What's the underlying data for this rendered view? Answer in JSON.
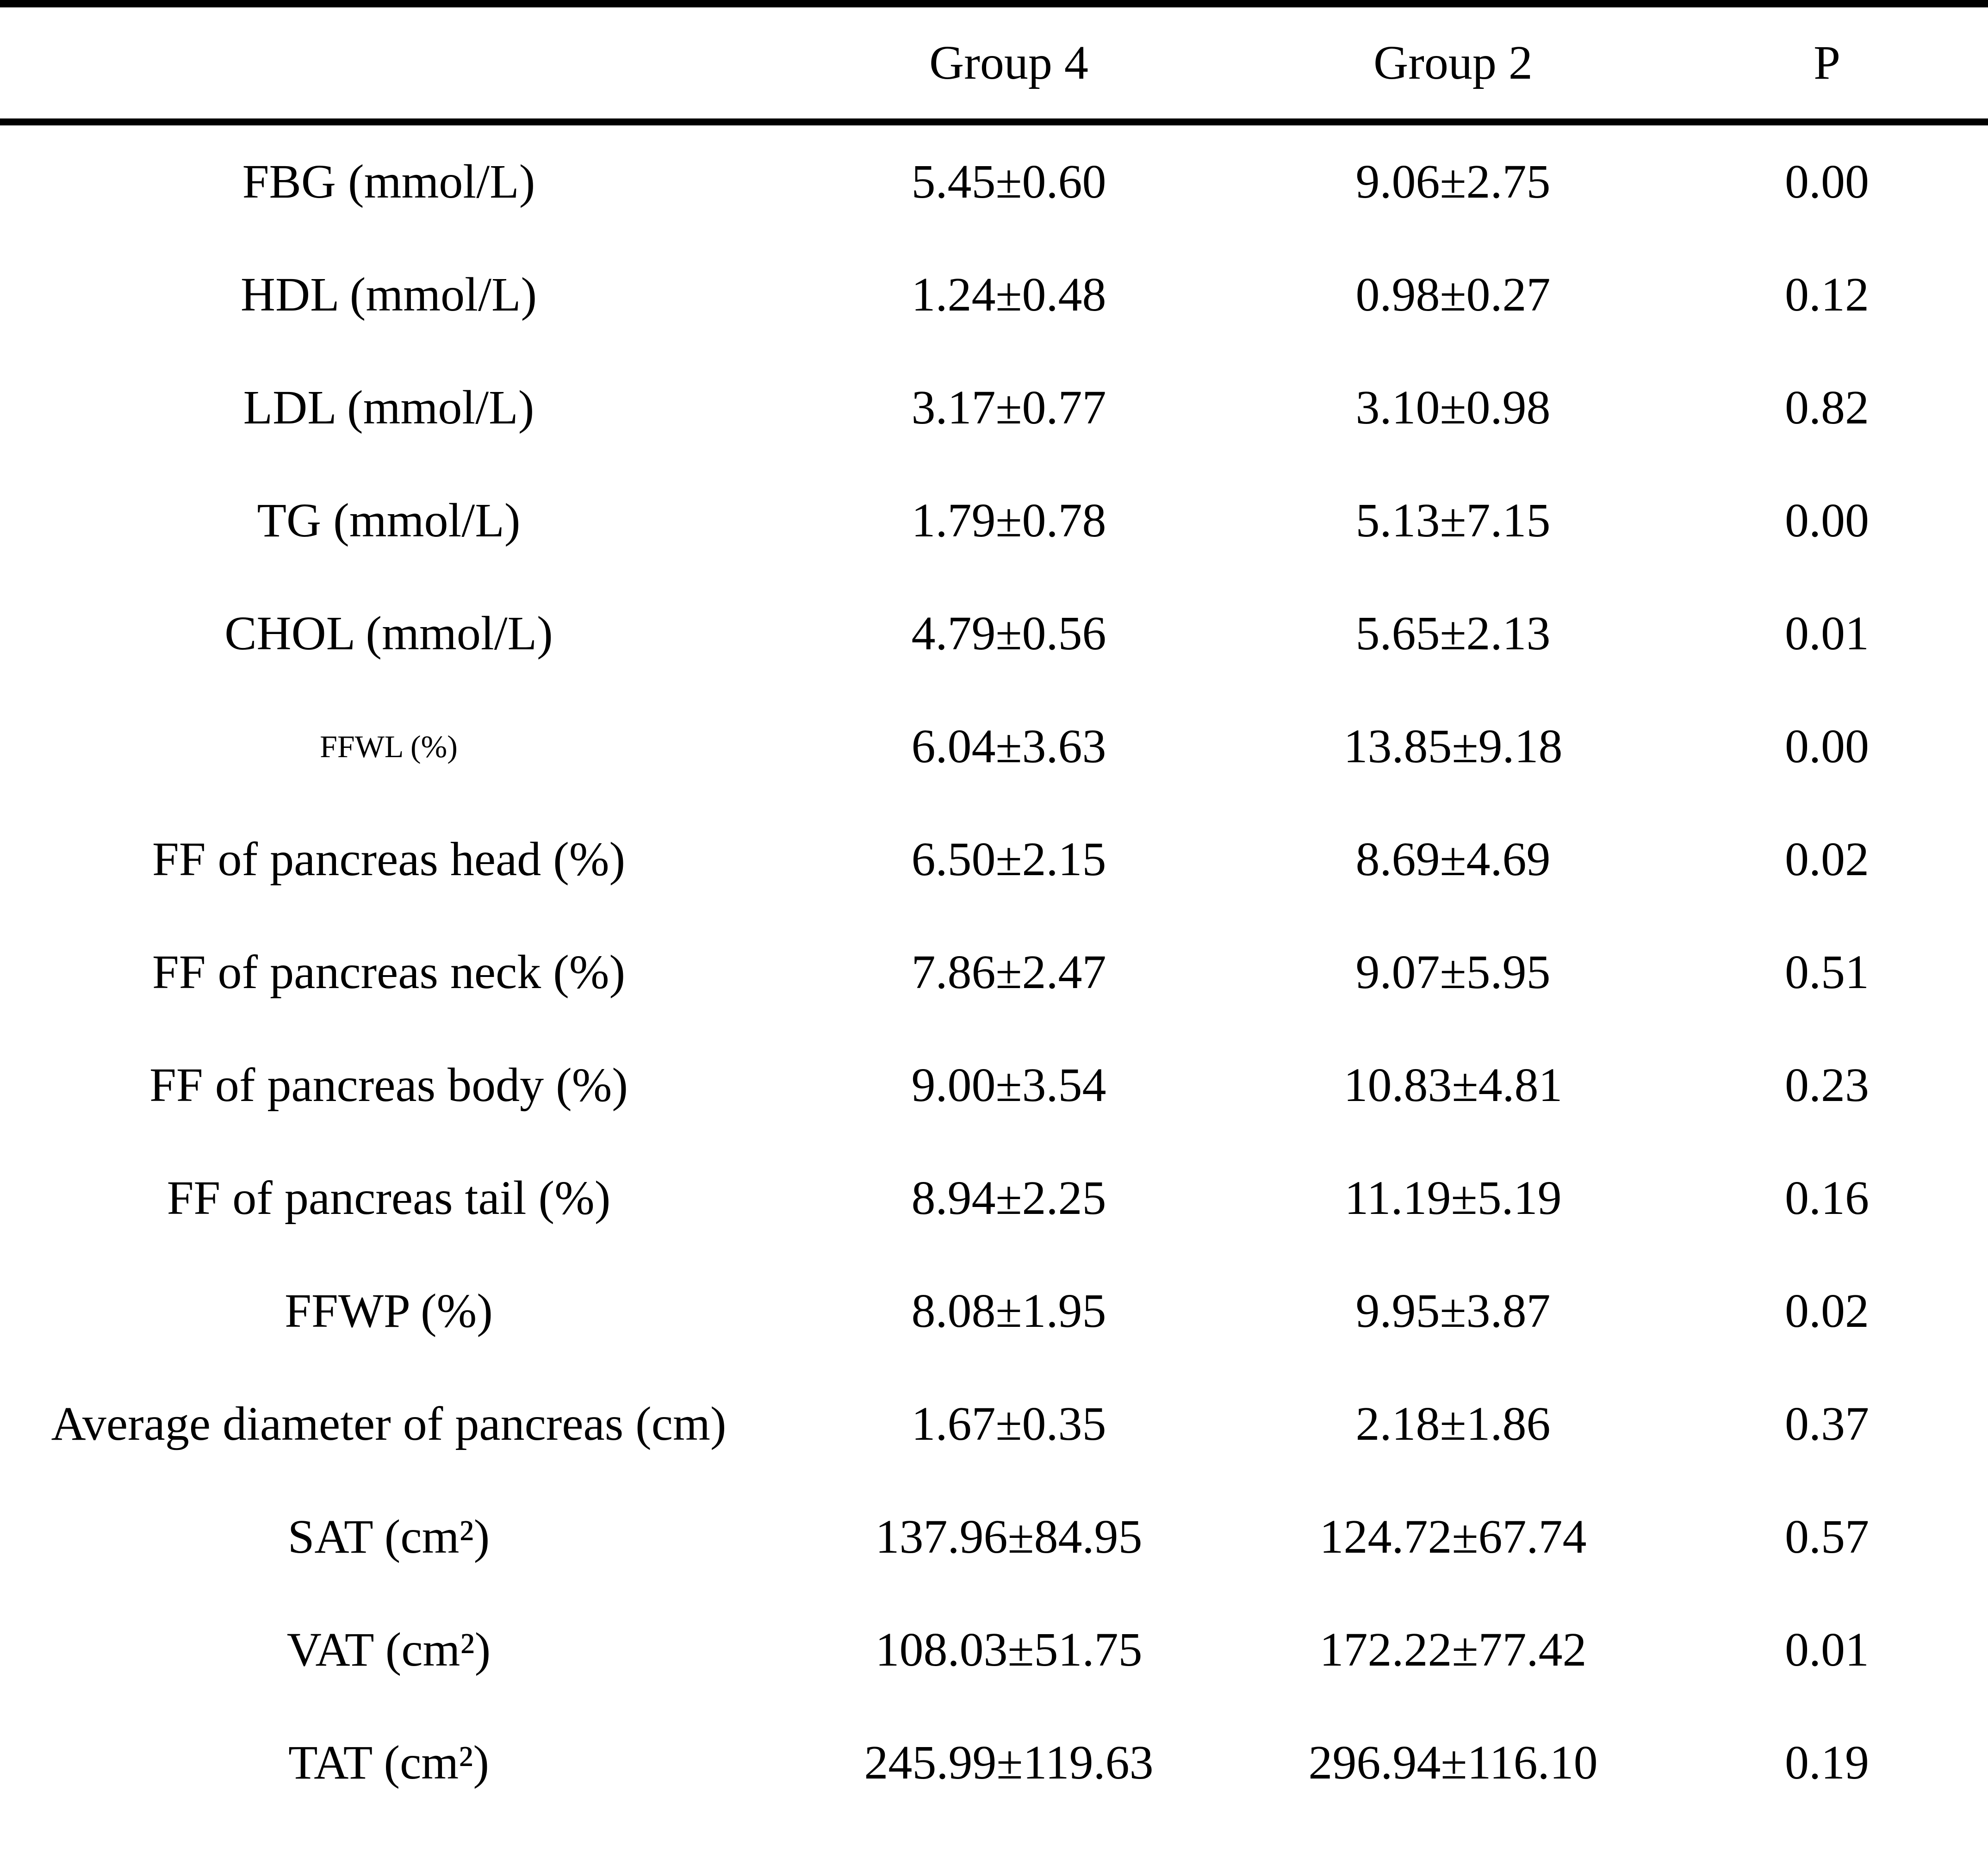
{
  "table": {
    "columns": [
      "",
      "Group 4",
      "Group 2",
      "P"
    ],
    "rows": [
      {
        "label": "FBG (mmol/L)",
        "group4": "5.45±0.60",
        "group2": "9.06±2.75",
        "p": "0.00"
      },
      {
        "label": "HDL (mmol/L)",
        "group4": "1.24±0.48",
        "group2": "0.98±0.27",
        "p": "0.12"
      },
      {
        "label": "LDL (mmol/L)",
        "group4": "3.17±0.77",
        "group2": "3.10±0.98",
        "p": "0.82"
      },
      {
        "label": "TG (mmol/L)",
        "group4": "1.79±0.78",
        "group2": "5.13±7.15",
        "p": "0.00"
      },
      {
        "label": "CHOL (mmol/L)",
        "group4": "4.79±0.56",
        "group2": "5.65±2.13",
        "p": "0.01"
      },
      {
        "label": "FFWL (%)",
        "group4": "6.04±3.63",
        "group2": "13.85±9.18",
        "p": "0.00"
      },
      {
        "label": "FF of pancreas head (%)",
        "group4": "6.50±2.15",
        "group2": "8.69±4.69",
        "p": "0.02"
      },
      {
        "label": "FF of pancreas neck (%)",
        "group4": "7.86±2.47",
        "group2": "9.07±5.95",
        "p": "0.51"
      },
      {
        "label": "FF of pancreas body (%)",
        "group4": "9.00±3.54",
        "group2": "10.83±4.81",
        "p": "0.23"
      },
      {
        "label": "FF of pancreas tail (%)",
        "group4": "8.94±2.25",
        "group2": "11.19±5.19",
        "p": "0.16"
      },
      {
        "label": "FFWP (%)",
        "group4": "8.08±1.95",
        "group2": "9.95±3.87",
        "p": "0.02"
      },
      {
        "label": "Average diameter of pancreas (cm)",
        "group4": "1.67±0.35",
        "group2": "2.18±1.86",
        "p": "0.37"
      },
      {
        "label": "SAT (cm²)",
        "group4": "137.96±84.95",
        "group2": "124.72±67.74",
        "p": "0.57"
      },
      {
        "label": "VAT (cm²)",
        "group4": "108.03±51.75",
        "group2": "172.22±77.42",
        "p": "0.01"
      },
      {
        "label": "TAT (cm²)",
        "group4": "245.99±119.63",
        "group2": "296.94±116.10",
        "p": "0.19"
      }
    ]
  }
}
